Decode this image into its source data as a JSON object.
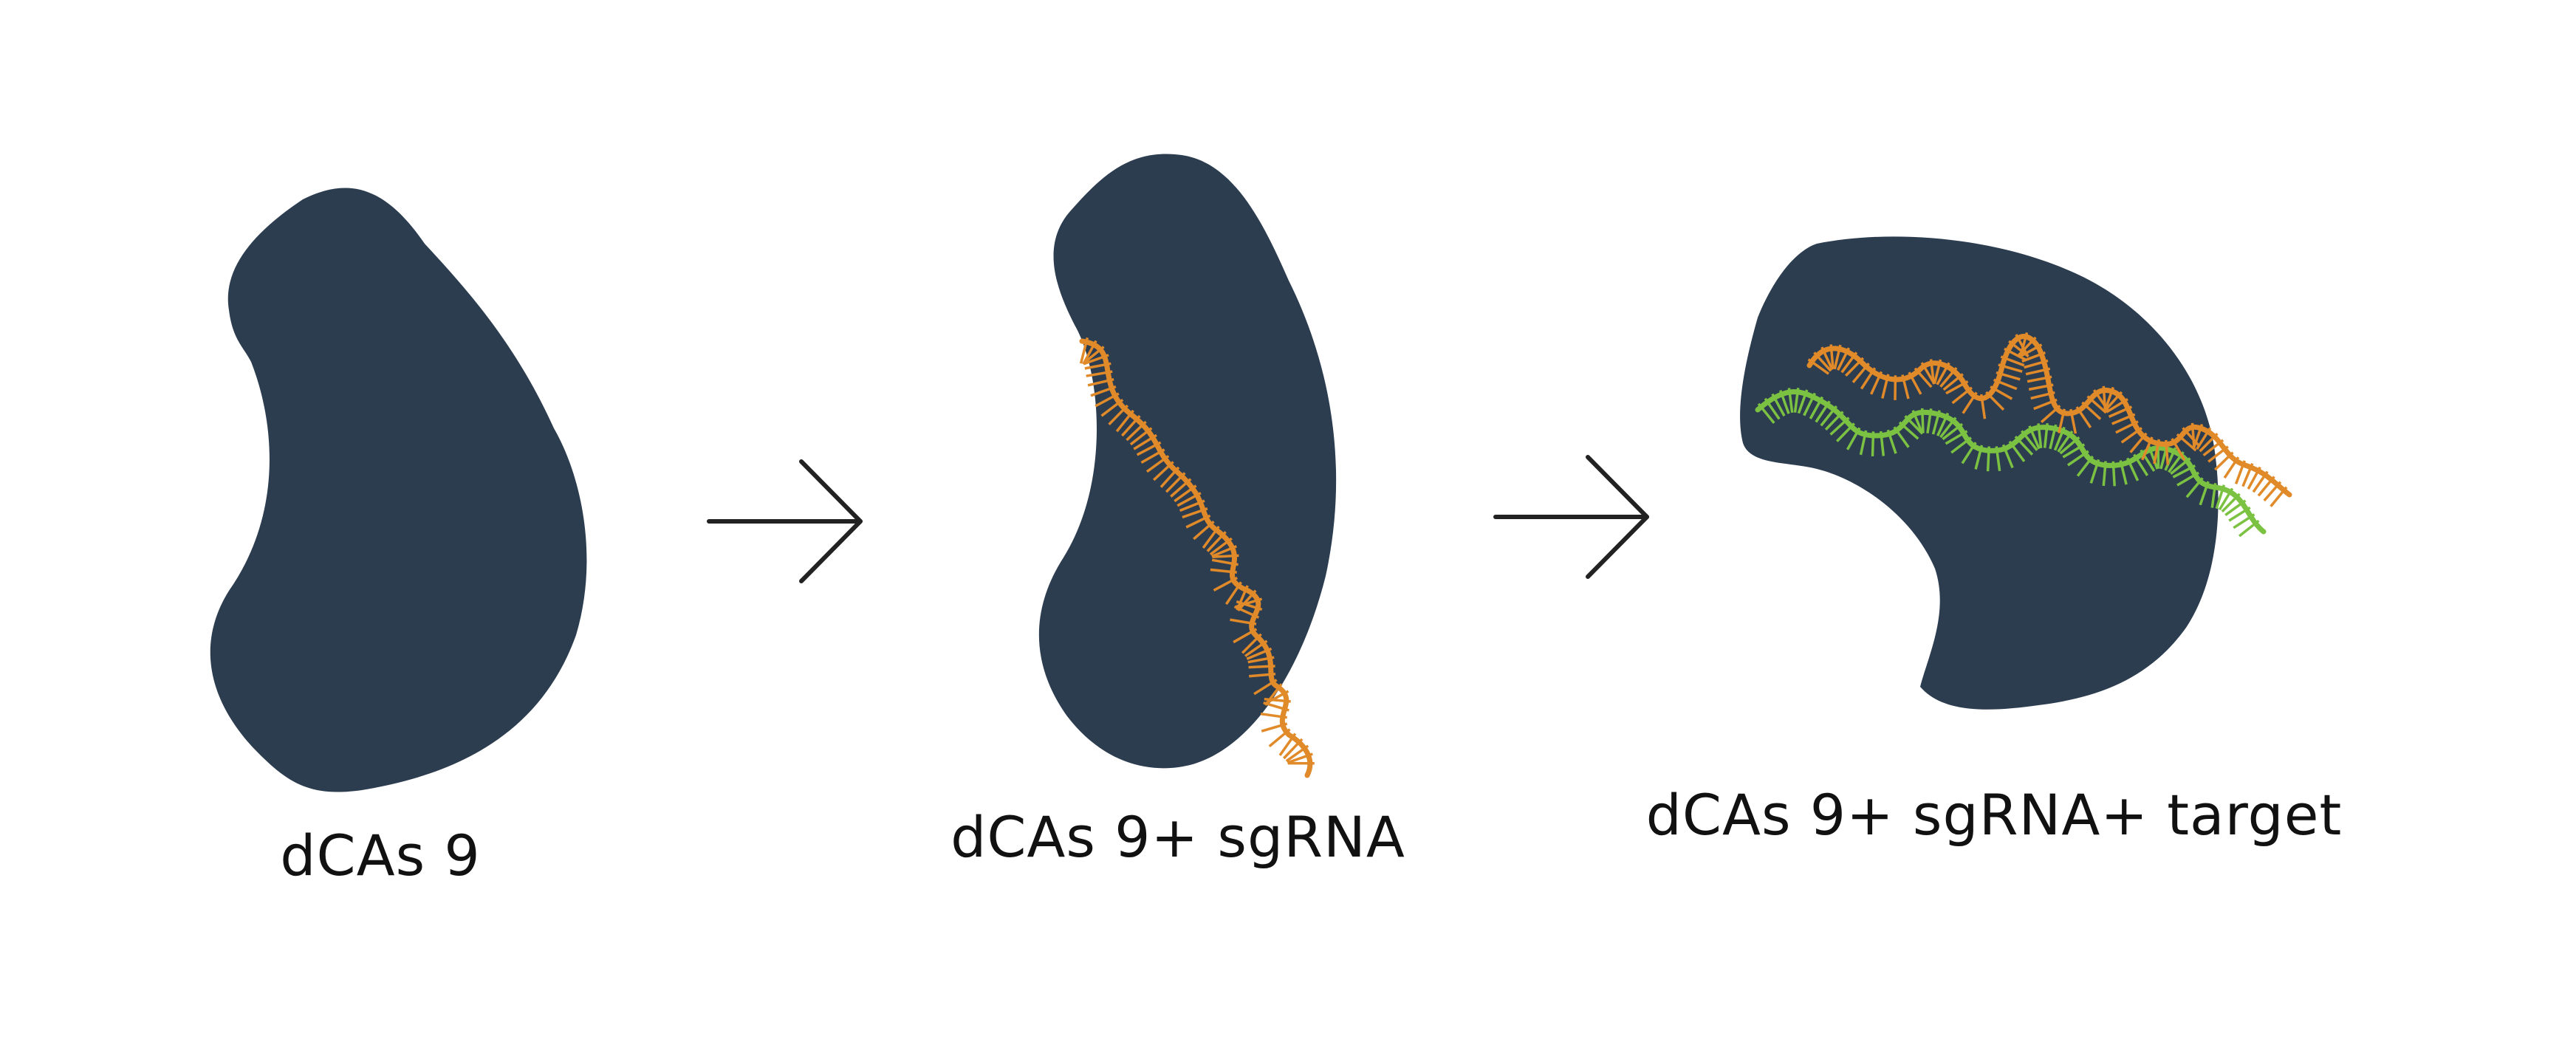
{
  "colors": {
    "protein": "#2d3d50",
    "sgrna": "#e08a2a",
    "target": "#7cc242",
    "arrow": "#222222",
    "text": "#111111"
  },
  "panels": [
    {
      "label": "dCAs 9"
    },
    {
      "label": "dCAs 9+ sgRNA"
    },
    {
      "label": "dCAs 9+ sgRNA+ target"
    }
  ],
  "arrows": [
    {
      "from": "dCAs 9",
      "to": "dCAs 9+ sgRNA"
    },
    {
      "from": "dCAs 9+ sgRNA",
      "to": "dCAs 9+ sgRNA+ target"
    }
  ]
}
